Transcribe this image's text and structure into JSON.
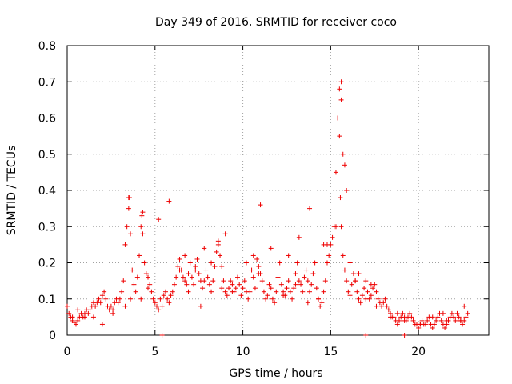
{
  "chart_data": {
    "type": "scatter",
    "title": "Day 349 of 2016, SRMTID for receiver coco",
    "xlabel": "GPS time / hours",
    "ylabel": "SRMTID / TECUs",
    "xlim": [
      0,
      24
    ],
    "ylim": [
      0,
      0.8
    ],
    "xticks": [
      0,
      5,
      10,
      15,
      20
    ],
    "yticks": [
      0,
      0.1,
      0.2,
      0.3,
      0.4,
      0.5,
      0.6,
      0.7,
      0.8
    ],
    "xtick_labels": [
      "0",
      "5",
      "10",
      "15",
      "20"
    ],
    "ytick_labels": [
      "0",
      "0.1",
      "0.2",
      "0.3",
      "0.4",
      "0.5",
      "0.6",
      "0.7",
      "0.8"
    ],
    "grid": true,
    "marker": "plus",
    "color": "#ee0000",
    "series": [
      {
        "name": "SRMTID",
        "x": [
          0.0,
          0.1,
          0.2,
          0.3,
          0.4,
          0.5,
          0.6,
          0.7,
          0.8,
          0.9,
          1.0,
          1.1,
          1.2,
          1.3,
          1.4,
          1.5,
          1.6,
          1.7,
          1.8,
          1.9,
          2.0,
          2.1,
          2.2,
          2.3,
          2.4,
          2.5,
          2.6,
          2.7,
          2.8,
          2.9,
          3.0,
          3.1,
          3.2,
          3.3,
          3.4,
          3.5,
          3.55,
          3.6,
          3.7,
          3.8,
          3.9,
          4.0,
          4.1,
          4.2,
          4.25,
          4.3,
          4.4,
          4.5,
          4.6,
          4.7,
          4.8,
          4.9,
          5.0,
          5.1,
          5.2,
          5.3,
          5.4,
          5.5,
          5.6,
          5.7,
          5.8,
          5.9,
          6.0,
          6.1,
          6.2,
          6.3,
          6.4,
          6.5,
          6.6,
          6.7,
          6.8,
          6.9,
          7.0,
          7.1,
          7.2,
          7.3,
          7.4,
          7.5,
          7.6,
          7.7,
          7.8,
          7.9,
          8.0,
          8.1,
          8.2,
          8.3,
          8.4,
          8.5,
          8.6,
          8.7,
          8.8,
          8.9,
          9.0,
          9.1,
          9.2,
          9.3,
          9.4,
          9.5,
          9.6,
          9.7,
          9.8,
          9.9,
          10.0,
          10.1,
          10.2,
          10.3,
          10.4,
          10.5,
          10.6,
          10.7,
          10.8,
          10.9,
          11.0,
          11.1,
          11.2,
          11.3,
          11.4,
          11.5,
          11.6,
          11.7,
          11.8,
          11.9,
          12.0,
          12.1,
          12.2,
          12.3,
          12.4,
          12.5,
          12.6,
          12.7,
          12.8,
          12.9,
          13.0,
          13.1,
          13.2,
          13.3,
          13.4,
          13.5,
          13.6,
          13.7,
          13.8,
          13.9,
          14.0,
          14.1,
          14.2,
          14.3,
          14.4,
          14.5,
          14.6,
          14.7,
          14.8,
          14.9,
          15.0,
          15.1,
          15.2,
          15.3,
          15.4,
          15.5,
          15.55,
          15.6,
          15.7,
          15.8,
          15.9,
          16.0,
          16.1,
          16.2,
          16.3,
          16.4,
          16.5,
          16.6,
          16.7,
          16.8,
          16.9,
          17.0,
          17.1,
          17.2,
          17.3,
          17.4,
          17.5,
          17.6,
          17.7,
          17.8,
          17.9,
          18.0,
          18.1,
          18.2,
          18.3,
          18.4,
          18.5,
          18.6,
          18.7,
          18.8,
          18.9,
          19.0,
          19.1,
          19.2,
          19.3,
          19.4,
          19.5,
          19.6,
          19.7,
          19.8,
          19.9,
          20.0,
          20.1,
          20.2,
          20.3,
          20.4,
          20.5,
          20.6,
          20.7,
          20.8,
          20.9,
          21.0,
          21.1,
          21.2,
          21.3,
          21.4,
          21.5,
          21.6,
          21.7,
          21.8,
          21.9,
          22.0,
          22.1,
          22.2,
          22.3,
          22.4,
          22.5,
          22.6,
          22.7,
          22.8,
          0.3,
          0.6,
          1.0,
          1.5,
          2.0,
          2.6,
          3.3,
          3.6,
          4.2,
          4.6,
          5.2,
          5.8,
          6.4,
          6.9,
          7.6,
          8.2,
          8.8,
          9.4,
          10.2,
          10.9,
          11.6,
          12.3,
          13.0,
          13.7,
          14.3,
          14.8,
          15.3,
          15.6,
          15.9,
          16.4,
          17.0,
          17.6,
          18.4,
          19.2,
          20.1,
          20.8,
          21.6,
          22.4,
          3.5,
          4.3,
          6.7,
          7.3,
          7.8,
          8.6,
          9.0,
          10.6,
          11.0,
          12.6,
          13.2,
          13.8,
          14.6,
          15.5,
          15.6,
          15.7,
          15.8,
          16.1,
          16.6,
          17.3,
          18.8,
          21.4,
          22.6,
          5.4,
          17.0,
          19.2
        ],
        "y": [
          0.08,
          0.06,
          0.05,
          0.04,
          0.035,
          0.03,
          0.04,
          0.05,
          0.06,
          0.05,
          0.06,
          0.07,
          0.06,
          0.07,
          0.08,
          0.09,
          0.08,
          0.09,
          0.1,
          0.09,
          0.11,
          0.12,
          0.1,
          0.08,
          0.07,
          0.08,
          0.07,
          0.09,
          0.1,
          0.09,
          0.1,
          0.12,
          0.15,
          0.25,
          0.3,
          0.35,
          0.38,
          0.28,
          0.18,
          0.14,
          0.12,
          0.16,
          0.22,
          0.3,
          0.33,
          0.28,
          0.2,
          0.17,
          0.16,
          0.14,
          0.12,
          0.1,
          0.09,
          0.08,
          0.07,
          0.1,
          0.08,
          0.11,
          0.12,
          0.1,
          0.09,
          0.11,
          0.12,
          0.14,
          0.16,
          0.19,
          0.21,
          0.18,
          0.16,
          0.15,
          0.14,
          0.17,
          0.2,
          0.16,
          0.14,
          0.18,
          0.21,
          0.17,
          0.15,
          0.13,
          0.15,
          0.18,
          0.16,
          0.14,
          0.12,
          0.15,
          0.19,
          0.23,
          0.26,
          0.22,
          0.19,
          0.15,
          0.12,
          0.11,
          0.13,
          0.15,
          0.14,
          0.12,
          0.13,
          0.16,
          0.14,
          0.11,
          0.13,
          0.15,
          0.12,
          0.1,
          0.12,
          0.18,
          0.16,
          0.13,
          0.21,
          0.19,
          0.17,
          0.15,
          0.12,
          0.1,
          0.11,
          0.14,
          0.13,
          0.1,
          0.09,
          0.12,
          0.16,
          0.2,
          0.14,
          0.12,
          0.11,
          0.13,
          0.15,
          0.12,
          0.1,
          0.13,
          0.17,
          0.2,
          0.15,
          0.14,
          0.12,
          0.16,
          0.18,
          0.15,
          0.12,
          0.14,
          0.17,
          0.2,
          0.13,
          0.1,
          0.08,
          0.09,
          0.12,
          0.15,
          0.2,
          0.22,
          0.25,
          0.27,
          0.3,
          0.45,
          0.6,
          0.55,
          0.38,
          0.3,
          0.22,
          0.18,
          0.15,
          0.12,
          0.11,
          0.14,
          0.17,
          0.15,
          0.12,
          0.1,
          0.09,
          0.11,
          0.13,
          0.15,
          0.12,
          0.1,
          0.11,
          0.13,
          0.14,
          0.12,
          0.1,
          0.09,
          0.08,
          0.09,
          0.1,
          0.08,
          0.07,
          0.06,
          0.05,
          0.05,
          0.04,
          0.03,
          0.04,
          0.05,
          0.06,
          0.05,
          0.04,
          0.05,
          0.06,
          0.05,
          0.04,
          0.03,
          0.03,
          0.02,
          0.03,
          0.04,
          0.03,
          0.03,
          0.04,
          0.05,
          0.03,
          0.02,
          0.03,
          0.04,
          0.05,
          0.06,
          0.04,
          0.03,
          0.02,
          0.03,
          0.04,
          0.05,
          0.06,
          0.05,
          0.04,
          0.06,
          0.05,
          0.04,
          0.03,
          0.04,
          0.05,
          0.06,
          0.05,
          0.07,
          0.05,
          0.05,
          0.03,
          0.06,
          0.08,
          0.1,
          0.1,
          0.13,
          0.32,
          0.37,
          0.18,
          0.12,
          0.08,
          0.2,
          0.13,
          0.12,
          0.2,
          0.17,
          0.24,
          0.11,
          0.14,
          0.09,
          0.1,
          0.25,
          0.3,
          0.65,
          0.4,
          0.15,
          0.1,
          0.08,
          0.05,
          0.04,
          0.03,
          0.05,
          0.04,
          0.04,
          0.38,
          0.34,
          0.22,
          0.19,
          0.24,
          0.25,
          0.28,
          0.22,
          0.36,
          0.22,
          0.27,
          0.35,
          0.25,
          0.68,
          0.7,
          0.5,
          0.47,
          0.2,
          0.17,
          0.14,
          0.06,
          0.06,
          0.08,
          0.0,
          0.0,
          0.0
        ]
      }
    ]
  }
}
